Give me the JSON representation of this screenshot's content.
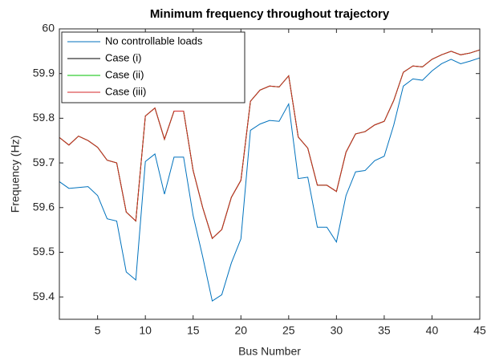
{
  "chart_data": {
    "type": "line",
    "title": "Minimum frequency throughout trajectory",
    "xlabel": "Bus Number",
    "ylabel": "Frequency (Hz)",
    "x": [
      1,
      2,
      3,
      4,
      5,
      6,
      7,
      8,
      9,
      10,
      11,
      12,
      13,
      14,
      15,
      16,
      17,
      18,
      19,
      20,
      21,
      22,
      23,
      24,
      25,
      26,
      27,
      28,
      29,
      30,
      31,
      32,
      33,
      34,
      35,
      36,
      37,
      38,
      39,
      40,
      41,
      42,
      43,
      44,
      45
    ],
    "xlim": [
      1,
      45
    ],
    "xticks": [
      5,
      10,
      15,
      20,
      25,
      30,
      35,
      40,
      45
    ],
    "ylim": [
      59.35,
      60
    ],
    "yticks": [
      59.4,
      59.5,
      59.6,
      59.7,
      59.8,
      59.9,
      60
    ],
    "legend_position": "upper left",
    "series": [
      {
        "name": "No controllable loads",
        "color": "#0072bd",
        "values": [
          59.658,
          59.643,
          59.645,
          59.647,
          59.627,
          59.575,
          59.57,
          59.456,
          59.438,
          59.703,
          59.72,
          59.63,
          59.713,
          59.713,
          59.582,
          59.49,
          59.391,
          59.405,
          59.476,
          59.53,
          59.773,
          59.787,
          59.795,
          59.793,
          59.832,
          59.665,
          59.668,
          59.556,
          59.556,
          59.523,
          59.627,
          59.68,
          59.683,
          59.705,
          59.715,
          59.785,
          59.872,
          59.888,
          59.885,
          59.906,
          59.922,
          59.932,
          59.922,
          59.928,
          59.935
        ]
      },
      {
        "name": "Case (i)",
        "color": "#000000",
        "values": [
          59.757,
          59.74,
          59.76,
          59.75,
          59.735,
          59.706,
          59.7,
          59.59,
          59.57,
          59.805,
          59.823,
          59.753,
          59.816,
          59.816,
          59.683,
          59.6,
          59.531,
          59.551,
          59.623,
          59.661,
          59.838,
          59.863,
          59.872,
          59.87,
          59.895,
          59.758,
          59.733,
          59.65,
          59.65,
          59.636,
          59.724,
          59.765,
          59.77,
          59.785,
          59.793,
          59.84,
          59.903,
          59.917,
          59.915,
          59.932,
          59.942,
          59.95,
          59.942,
          59.946,
          59.953
        ]
      },
      {
        "name": "Case (ii)",
        "color": "#00c000",
        "values": [
          59.757,
          59.74,
          59.76,
          59.75,
          59.735,
          59.706,
          59.7,
          59.59,
          59.57,
          59.805,
          59.823,
          59.753,
          59.816,
          59.816,
          59.683,
          59.6,
          59.531,
          59.551,
          59.623,
          59.661,
          59.838,
          59.863,
          59.872,
          59.87,
          59.895,
          59.758,
          59.733,
          59.65,
          59.65,
          59.636,
          59.724,
          59.765,
          59.77,
          59.785,
          59.793,
          59.84,
          59.903,
          59.917,
          59.915,
          59.932,
          59.942,
          59.95,
          59.942,
          59.946,
          59.953
        ]
      },
      {
        "name": "Case (iii)",
        "color": "#d62728",
        "values": [
          59.757,
          59.74,
          59.76,
          59.75,
          59.735,
          59.706,
          59.7,
          59.59,
          59.57,
          59.805,
          59.823,
          59.753,
          59.816,
          59.816,
          59.683,
          59.6,
          59.531,
          59.551,
          59.623,
          59.661,
          59.838,
          59.863,
          59.872,
          59.87,
          59.895,
          59.758,
          59.733,
          59.65,
          59.65,
          59.636,
          59.724,
          59.765,
          59.77,
          59.785,
          59.793,
          59.84,
          59.903,
          59.917,
          59.915,
          59.932,
          59.942,
          59.95,
          59.942,
          59.946,
          59.953
        ]
      }
    ]
  }
}
